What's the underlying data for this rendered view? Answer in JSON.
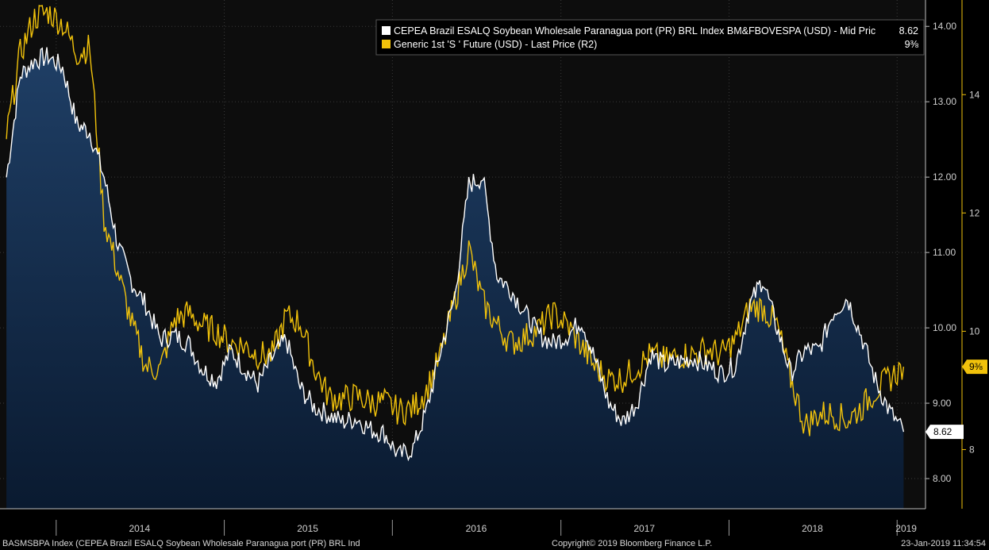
{
  "chart_data": {
    "type": "area",
    "colors": {
      "background": "#000000",
      "plot_background": "#0d0d0d",
      "area_fill_top": "#1f3f66",
      "area_fill_bottom": "#0a1a30",
      "primary_line": "#ffffff",
      "secondary_line": "#f1c20b",
      "grid": "#3a3a3a"
    },
    "x_ticks": [
      "2014",
      "2015",
      "2016",
      "2017",
      "2018",
      "2019"
    ],
    "y_left_ticks": [
      "14.00",
      "13.00",
      "12.00",
      "11.00",
      "10.00",
      "9.00",
      "8.00"
    ],
    "y_right_ticks": [
      "14",
      "12",
      "10",
      "8"
    ],
    "y_left_range": [
      7.6,
      14.35
    ],
    "y_right_range": [
      7.0,
      15.6
    ],
    "grid": true,
    "legend_position": "top-right",
    "series": [
      {
        "name": "CEPEA Brazil ESALQ Soybean Wholesale Paranagua port (PR) BRL Index BM&FBOVESPA (USD) - Mid Pric",
        "axis": "left",
        "last_value": "8.62",
        "x": [
          "2013-09",
          "2013-10",
          "2013-11",
          "2013-12",
          "2014-01",
          "2014-02",
          "2014-03",
          "2014-04",
          "2014-05",
          "2014-06",
          "2014-07",
          "2014-08",
          "2014-09",
          "2014-10",
          "2014-11",
          "2014-12",
          "2015-01",
          "2015-02",
          "2015-03",
          "2015-04",
          "2015-05",
          "2015-06",
          "2015-07",
          "2015-08",
          "2015-09",
          "2015-10",
          "2015-11",
          "2015-12",
          "2016-01",
          "2016-02",
          "2016-03",
          "2016-04",
          "2016-05",
          "2016-06",
          "2016-07",
          "2016-08",
          "2016-09",
          "2016-10",
          "2016-11",
          "2016-12",
          "2017-01",
          "2017-02",
          "2017-03",
          "2017-04",
          "2017-05",
          "2017-06",
          "2017-07",
          "2017-08",
          "2017-09",
          "2017-10",
          "2017-11",
          "2017-12",
          "2018-01",
          "2018-02",
          "2018-03",
          "2018-04",
          "2018-05",
          "2018-06",
          "2018-07",
          "2018-08",
          "2018-09",
          "2018-10",
          "2018-11",
          "2018-12",
          "2019-01"
        ],
        "values": [
          12.0,
          13.35,
          13.55,
          13.6,
          13.45,
          12.7,
          12.6,
          12.0,
          11.1,
          10.6,
          10.3,
          9.85,
          9.9,
          9.8,
          9.45,
          9.3,
          9.7,
          9.45,
          9.25,
          9.6,
          9.85,
          9.2,
          8.95,
          8.85,
          8.75,
          8.8,
          8.65,
          8.6,
          8.3,
          8.4,
          8.9,
          9.7,
          10.4,
          11.9,
          12.0,
          10.7,
          10.5,
          10.2,
          9.9,
          9.8,
          9.9,
          10.1,
          9.6,
          9.0,
          8.75,
          9.0,
          9.65,
          9.5,
          9.55,
          9.6,
          9.5,
          9.4,
          9.5,
          10.3,
          10.65,
          10.0,
          9.4,
          9.7,
          9.7,
          10.2,
          10.4,
          9.9,
          9.3,
          8.9,
          8.62
        ]
      },
      {
        "name": "Generic 1st 'S ' Future (USD) - Last Price (R2)",
        "axis": "right",
        "last_value": "9⅜",
        "x": [
          "2013-09",
          "2013-10",
          "2013-11",
          "2013-12",
          "2014-01",
          "2014-02",
          "2014-03",
          "2014-04",
          "2014-05",
          "2014-06",
          "2014-07",
          "2014-08",
          "2014-09",
          "2014-10",
          "2014-11",
          "2014-12",
          "2015-01",
          "2015-02",
          "2015-03",
          "2015-04",
          "2015-05",
          "2015-06",
          "2015-07",
          "2015-08",
          "2015-09",
          "2015-10",
          "2015-11",
          "2015-12",
          "2016-01",
          "2016-02",
          "2016-03",
          "2016-04",
          "2016-05",
          "2016-06",
          "2016-07",
          "2016-08",
          "2016-09",
          "2016-10",
          "2016-11",
          "2016-12",
          "2017-01",
          "2017-02",
          "2017-03",
          "2017-04",
          "2017-05",
          "2017-06",
          "2017-07",
          "2017-08",
          "2017-09",
          "2017-10",
          "2017-11",
          "2017-12",
          "2018-01",
          "2018-02",
          "2018-03",
          "2018-04",
          "2018-05",
          "2018-06",
          "2018-07",
          "2018-08",
          "2018-09",
          "2018-10",
          "2018-11",
          "2018-12",
          "2019-01"
        ],
        "values": [
          13.3,
          14.7,
          15.3,
          15.4,
          15.2,
          14.7,
          14.8,
          11.9,
          11.0,
          10.1,
          9.4,
          9.35,
          10.2,
          10.3,
          10.1,
          10.0,
          9.8,
          9.75,
          9.6,
          9.6,
          10.25,
          10.15,
          9.4,
          8.9,
          8.85,
          8.9,
          8.8,
          8.8,
          8.65,
          8.7,
          9.0,
          9.6,
          10.5,
          11.4,
          10.5,
          10.1,
          9.8,
          9.9,
          10.05,
          10.3,
          10.1,
          9.75,
          9.4,
          9.2,
          9.2,
          9.4,
          9.6,
          9.5,
          9.6,
          9.6,
          9.7,
          9.6,
          9.85,
          10.4,
          10.4,
          10.1,
          9.2,
          8.4,
          8.6,
          8.6,
          8.5,
          8.7,
          9.0,
          9.2,
          9.4
        ]
      }
    ]
  },
  "footer": {
    "left": "BASMSBPA Index (CEPEA Brazil ESALQ Soybean Wholesale Paranagua port (PR) BRL Ind",
    "center": "Copyright© 2019 Bloomberg Finance L.P.",
    "right": "23-Jan-2019 11:34:54"
  }
}
